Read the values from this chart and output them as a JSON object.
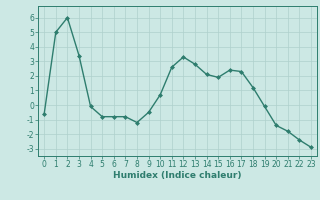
{
  "x": [
    0,
    1,
    2,
    3,
    4,
    5,
    6,
    7,
    8,
    9,
    10,
    11,
    12,
    13,
    14,
    15,
    16,
    17,
    18,
    19,
    20,
    21,
    22,
    23
  ],
  "y": [
    -0.6,
    5.0,
    6.0,
    3.4,
    -0.1,
    -0.8,
    -0.8,
    -0.8,
    -1.2,
    -0.5,
    0.7,
    2.6,
    3.3,
    2.8,
    2.1,
    1.9,
    2.4,
    2.3,
    1.2,
    -0.1,
    -1.4,
    -1.8,
    -2.4,
    -2.9
  ],
  "line_color": "#2e7d6e",
  "marker": "D",
  "marker_size": 2.0,
  "line_width": 1.0,
  "xlabel": "Humidex (Indice chaleur)",
  "xlabel_fontsize": 6.5,
  "ylim": [
    -3.5,
    6.8
  ],
  "xlim": [
    -0.5,
    23.5
  ],
  "yticks": [
    -3,
    -2,
    -1,
    0,
    1,
    2,
    3,
    4,
    5,
    6
  ],
  "xticks": [
    0,
    1,
    2,
    3,
    4,
    5,
    6,
    7,
    8,
    9,
    10,
    11,
    12,
    13,
    14,
    15,
    16,
    17,
    18,
    19,
    20,
    21,
    22,
    23
  ],
  "background_color": "#cce8e4",
  "grid_color": "#afd0cc",
  "tick_color": "#2e7d6e",
  "label_color": "#2e7d6e",
  "tick_fontsize": 5.5,
  "figure_bg": "#cce8e4"
}
